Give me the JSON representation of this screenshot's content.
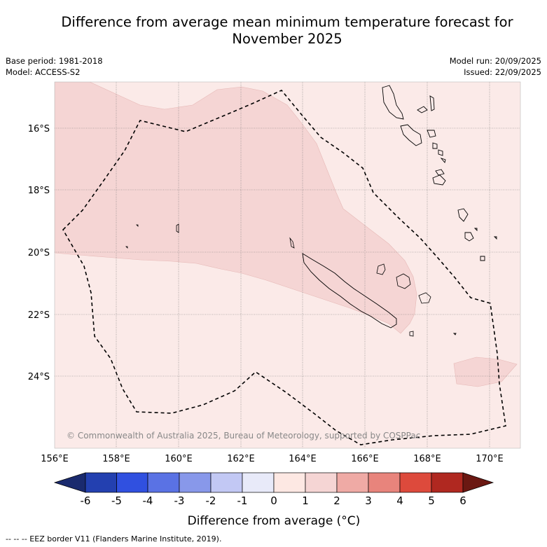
{
  "title": {
    "line1": "Difference from average mean minimum temperature forecast for",
    "line2": "November 2025"
  },
  "meta": {
    "base_period": "Base period: 1981-2018",
    "model": "Model: ACCESS-S2",
    "model_run": "Model run: 20/09/2025",
    "issued": "Issued: 22/09/2025"
  },
  "map": {
    "lon_ticks": [
      "156°E",
      "158°E",
      "160°E",
      "162°E",
      "164°E",
      "166°E",
      "168°E",
      "170°E"
    ],
    "lat_ticks": [
      "16°S",
      "18°S",
      "20°S",
      "22°S",
      "24°S"
    ],
    "copyright": "© Commonwealth of Australia 2025, Bureau of Meteorology, supported by COSPPac",
    "colors": {
      "background_anomaly": "#fbeae8",
      "anomaly_1_to_2": "#f5d5d4",
      "grid": "#777777"
    }
  },
  "colorbar": {
    "ticks": [
      "-6",
      "-5",
      "-4",
      "-3",
      "-2",
      "-1",
      "0",
      "1",
      "2",
      "3",
      "4",
      "5",
      "6"
    ],
    "colors": [
      "#1a2a6e",
      "#2340b0",
      "#3050e0",
      "#5a72e4",
      "#8898ea",
      "#c2c8f4",
      "#e8eaf9",
      "#fde8e3",
      "#f5d5d4",
      "#efaaa5",
      "#e8847c",
      "#dd4a3c",
      "#b02820",
      "#6b1812"
    ],
    "title": "Difference from average (°C)"
  },
  "footnote": "-- -- -- EEZ border V11 (Flanders Marine Institute, 2019)."
}
